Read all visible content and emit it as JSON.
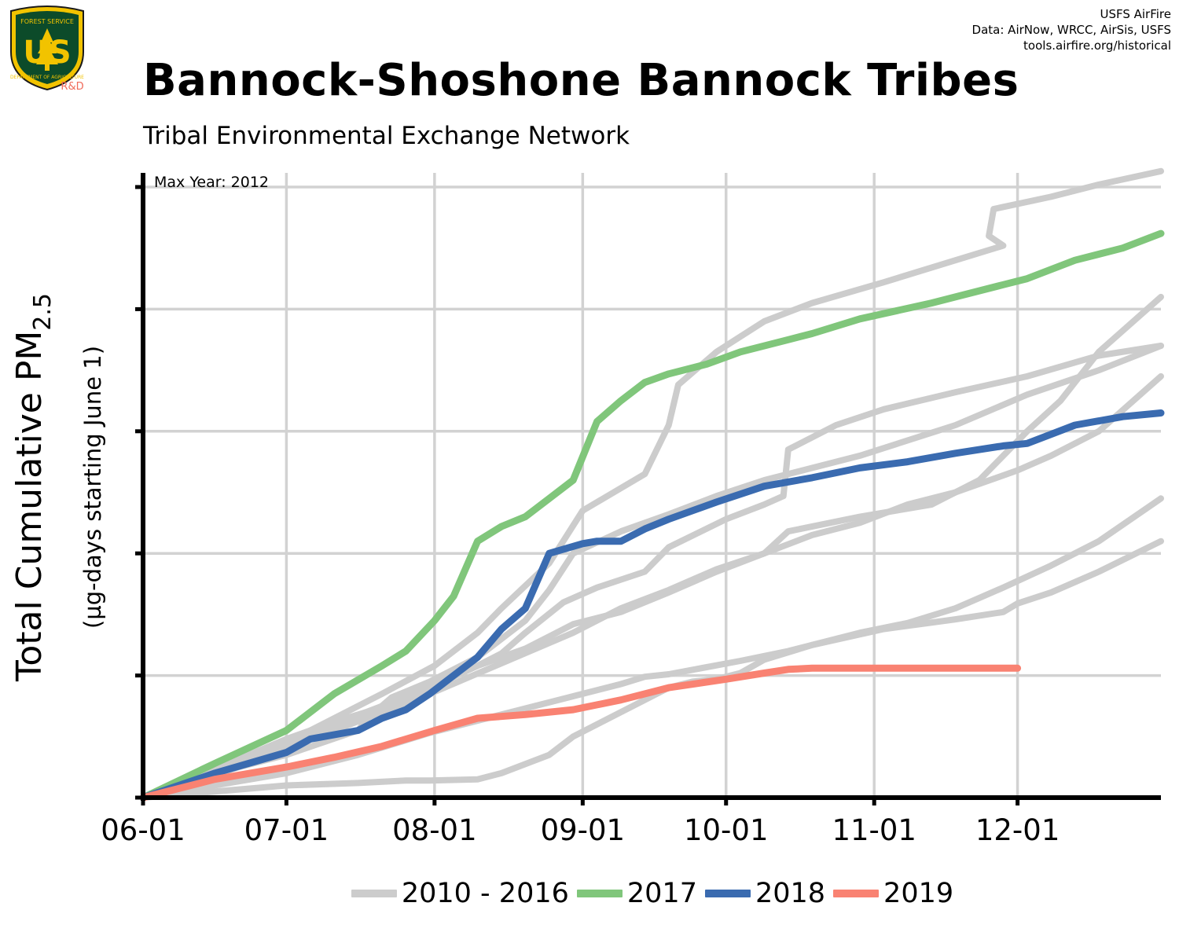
{
  "header": {
    "title": "Bannock-Shoshone Bannock Tribes",
    "subtitle": "Tribal Environmental Exchange Network",
    "attribution": [
      "USFS AirFire",
      "Data: AirNow, WRCC, AirSis, USFS",
      "tools.airfire.org/historical"
    ],
    "logo": {
      "icon": "usfs-shield-icon",
      "top_text": "FOREST SERVICE",
      "letters": "US",
      "bottom_text": "DEPARTMENT OF AGRICULTURE",
      "tag": "R&D"
    }
  },
  "chart_data": {
    "type": "line",
    "ylabel_main": "Total Cumulative PM",
    "ylabel_sub": "2.5",
    "ylabel_units": "(µg-days starting June 1)",
    "annotation": "Max Year: 2012",
    "x_ticks": [
      "06-01",
      "07-01",
      "08-01",
      "09-01",
      "10-01",
      "11-01",
      "12-01"
    ],
    "x_tick_days": [
      0,
      30,
      61,
      92,
      122,
      153,
      183
    ],
    "xlim": [
      0,
      213
    ],
    "ylim": [
      0,
      5
    ],
    "y_ticks": [
      0,
      1,
      2,
      3,
      4,
      5
    ],
    "y_tick_labels_shown": false,
    "grid": true,
    "legend_position": "bottom",
    "colors": {
      "historical": "#cccccc",
      "y2017": "#80c67b",
      "y2018": "#3a6bb0",
      "y2019": "#f98272"
    },
    "series": [
      {
        "name": "2010 - 2016",
        "group": "historical",
        "color": "#cccccc",
        "x": [
          0,
          10,
          30,
          40,
          55,
          61,
          70,
          75,
          80,
          85,
          90,
          100,
          110,
          120,
          130,
          135,
          150,
          165,
          170,
          175,
          180,
          185,
          192,
          200,
          213
        ],
        "y": [
          0,
          0.15,
          0.48,
          0.62,
          0.8,
          0.92,
          1.08,
          1.15,
          1.22,
          1.32,
          1.42,
          1.52,
          1.68,
          1.85,
          2.0,
          2.18,
          2.3,
          2.4,
          2.5,
          2.6,
          2.8,
          3.0,
          3.25,
          3.65,
          4.1
        ]
      },
      {
        "name": "2010 - 2016",
        "group": "historical",
        "color": "#cccccc",
        "x": [
          0,
          20,
          40,
          60,
          75,
          90,
          100,
          110,
          120,
          130,
          140,
          150,
          160,
          170,
          183,
          190,
          200,
          213
        ],
        "y": [
          0,
          0.25,
          0.55,
          0.85,
          1.1,
          1.35,
          1.55,
          1.7,
          1.87,
          2.0,
          2.15,
          2.25,
          2.4,
          2.5,
          2.68,
          2.8,
          3.0,
          3.45
        ]
      },
      {
        "name": "2010 - 2016",
        "group": "historical",
        "color": "#cccccc",
        "x": [
          0,
          30,
          45,
          55,
          60,
          70,
          75,
          85,
          90,
          100,
          110,
          115,
          120,
          125,
          130,
          140,
          150,
          160,
          170,
          180,
          190,
          200,
          213
        ],
        "y": [
          0,
          0.1,
          0.12,
          0.14,
          0.14,
          0.15,
          0.2,
          0.35,
          0.5,
          0.7,
          0.9,
          0.95,
          0.97,
          1.02,
          1.13,
          1.25,
          1.35,
          1.43,
          1.55,
          1.72,
          1.9,
          2.1,
          2.45
        ]
      },
      {
        "name": "2010 - 2016",
        "group": "historical",
        "color": "#cccccc",
        "x": [
          0,
          30,
          45,
          60,
          75,
          90,
          100,
          105,
          110,
          125,
          135,
          140,
          155,
          170,
          180,
          183,
          190,
          200,
          213
        ],
        "y": [
          0,
          0.2,
          0.35,
          0.53,
          0.68,
          0.83,
          0.93,
          0.99,
          1.01,
          1.12,
          1.2,
          1.25,
          1.38,
          1.46,
          1.52,
          1.59,
          1.68,
          1.85,
          2.1
        ]
      },
      {
        "name": "2010 - 2016",
        "group": "historical",
        "color": "#cccccc",
        "x": [
          0,
          20,
          30,
          45,
          47,
          52,
          60,
          70,
          80,
          85,
          90,
          100,
          110,
          120,
          130,
          150,
          170,
          185,
          200,
          213
        ],
        "y": [
          0,
          0.25,
          0.35,
          0.55,
          0.65,
          0.82,
          0.95,
          1.15,
          1.45,
          1.7,
          2.0,
          2.18,
          2.32,
          2.47,
          2.6,
          2.8,
          3.05,
          3.3,
          3.5,
          3.7
        ]
      },
      {
        "name": "2010 - 2016",
        "group": "historical",
        "color": "#cccccc",
        "x": [
          0,
          30,
          50,
          60,
          70,
          75,
          80,
          88,
          95,
          105,
          110,
          122,
          130,
          134,
          135,
          145,
          155,
          170,
          185,
          200,
          213
        ],
        "y": [
          0,
          0.45,
          0.75,
          0.9,
          1.08,
          1.18,
          1.35,
          1.6,
          1.72,
          1.85,
          2.05,
          2.28,
          2.4,
          2.47,
          2.85,
          3.05,
          3.18,
          3.32,
          3.45,
          3.62,
          3.7
        ]
      },
      {
        "name": "2010 - 2016",
        "group": "historical",
        "color": "#cccccc",
        "x": [
          0,
          30,
          50,
          61,
          70,
          75,
          85,
          92,
          105,
          110,
          112,
          120,
          130,
          140,
          155,
          170,
          180,
          177,
          178,
          190,
          200,
          213
        ],
        "y": [
          0,
          0.45,
          0.85,
          1.08,
          1.35,
          1.55,
          1.92,
          2.35,
          2.65,
          3.05,
          3.38,
          3.65,
          3.9,
          4.05,
          4.22,
          4.4,
          4.52,
          4.6,
          4.82,
          4.92,
          5.02,
          5.13
        ]
      },
      {
        "name": "2017",
        "group": "y2017",
        "color": "#80c67b",
        "x": [
          0,
          15,
          30,
          40,
          50,
          55,
          61,
          65,
          70,
          75,
          80,
          85,
          90,
          95,
          100,
          105,
          110,
          118,
          125,
          135,
          140,
          150,
          165,
          180,
          185,
          195,
          205,
          213
        ],
        "y": [
          0,
          0.28,
          0.55,
          0.85,
          1.08,
          1.2,
          1.45,
          1.65,
          2.1,
          2.22,
          2.3,
          2.45,
          2.6,
          3.08,
          3.25,
          3.4,
          3.47,
          3.55,
          3.65,
          3.75,
          3.8,
          3.92,
          4.05,
          4.2,
          4.25,
          4.4,
          4.5,
          4.62
        ]
      },
      {
        "name": "2018",
        "group": "y2018",
        "color": "#3a6bb0",
        "x": [
          0,
          15,
          30,
          35,
          45,
          50,
          55,
          60,
          65,
          70,
          75,
          80,
          85,
          92,
          95,
          100,
          105,
          110,
          120,
          130,
          140,
          150,
          160,
          170,
          180,
          185,
          195,
          205,
          213
        ],
        "y": [
          0,
          0.2,
          0.37,
          0.48,
          0.55,
          0.65,
          0.72,
          0.85,
          1.0,
          1.15,
          1.38,
          1.55,
          2.0,
          2.08,
          2.1,
          2.1,
          2.2,
          2.28,
          2.42,
          2.55,
          2.62,
          2.7,
          2.75,
          2.82,
          2.88,
          2.9,
          3.05,
          3.12,
          3.15
        ]
      },
      {
        "name": "2019",
        "group": "y2019",
        "color": "#f98272",
        "x": [
          0,
          15,
          30,
          40,
          50,
          61,
          70,
          80,
          90,
          100,
          110,
          122,
          130,
          135,
          140,
          150,
          160,
          170,
          183
        ],
        "y": [
          0,
          0.15,
          0.25,
          0.33,
          0.42,
          0.55,
          0.65,
          0.68,
          0.72,
          0.8,
          0.9,
          0.97,
          1.02,
          1.05,
          1.06,
          1.06,
          1.06,
          1.06,
          1.06
        ]
      }
    ],
    "legend": [
      {
        "label": "2010 - 2016",
        "color": "#cccccc"
      },
      {
        "label": "2017",
        "color": "#80c67b"
      },
      {
        "label": "2018",
        "color": "#3a6bb0"
      },
      {
        "label": "2019",
        "color": "#f98272"
      }
    ]
  }
}
